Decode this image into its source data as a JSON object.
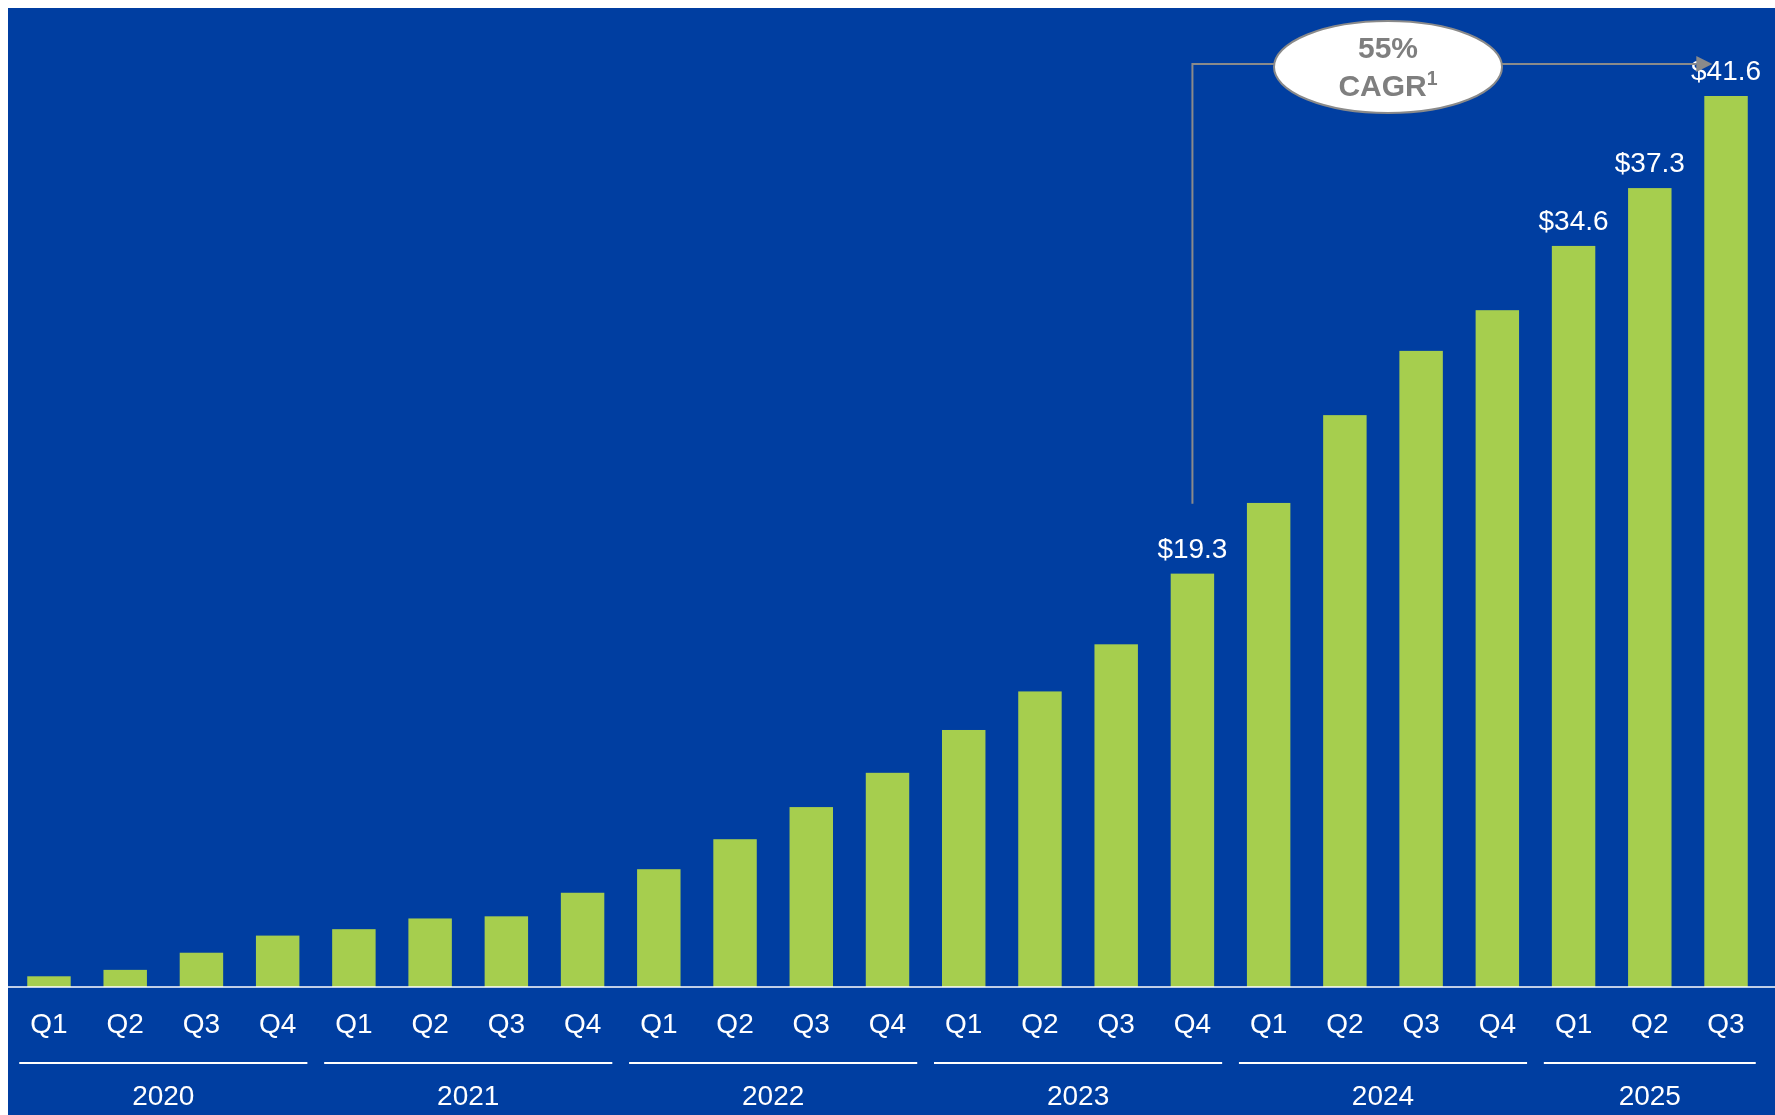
{
  "chart_data": {
    "type": "bar",
    "categories": [
      "Q1",
      "Q2",
      "Q3",
      "Q4",
      "Q1",
      "Q2",
      "Q3",
      "Q4",
      "Q1",
      "Q2",
      "Q3",
      "Q4",
      "Q1",
      "Q2",
      "Q3",
      "Q4",
      "Q1",
      "Q2",
      "Q3",
      "Q4",
      "Q1",
      "Q2",
      "Q3"
    ],
    "values": [
      0.5,
      0.8,
      1.6,
      2.4,
      2.7,
      3.2,
      3.3,
      4.4,
      5.5,
      6.9,
      8.4,
      10.0,
      12.0,
      13.8,
      16.0,
      19.3,
      22.6,
      26.7,
      29.7,
      31.6,
      34.6,
      37.3,
      41.6
    ],
    "value_labels": [
      null,
      null,
      null,
      null,
      null,
      null,
      null,
      null,
      null,
      null,
      null,
      null,
      null,
      null,
      null,
      "$19.3",
      null,
      null,
      null,
      null,
      "$34.6",
      "$37.3",
      "$41.6"
    ],
    "color": "#a6ce4e",
    "annotations": [
      "55% CAGR$^{1}$",
      "2020",
      "2021",
      "2022",
      "2023",
      "2024",
      "2025"
    ]
  }
}
